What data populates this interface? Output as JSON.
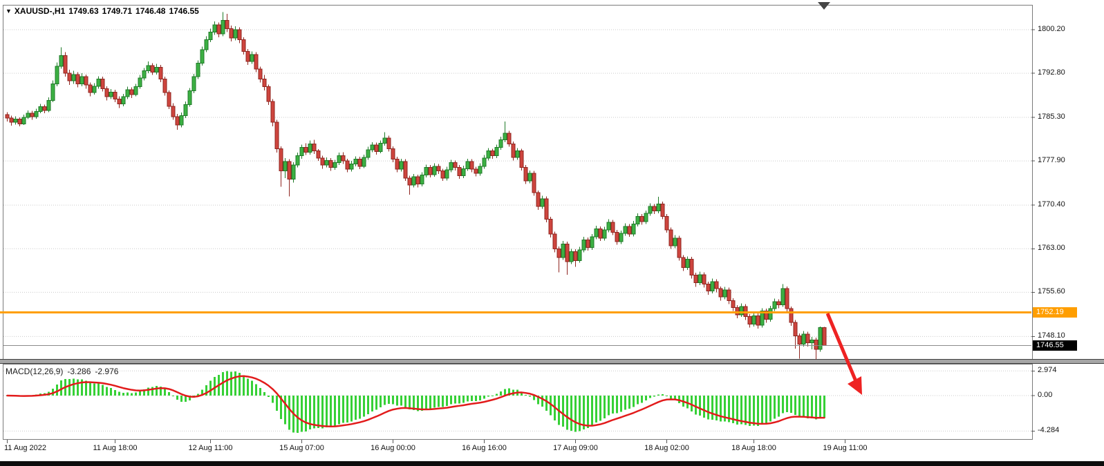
{
  "title_bar": {
    "symbol_tf": "XAUUSD-,H1",
    "open": "1749.63",
    "high": "1749.71",
    "low": "1746.48",
    "close": "1746.55"
  },
  "icons": {
    "title_marker": "▼"
  },
  "macd": {
    "name": "MACD(12,26,9)",
    "main_value": "-3.286",
    "signal_value": "-2.976"
  },
  "levels": {
    "orange_line": {
      "label": "1752.19",
      "value": 1752.19
    },
    "current_price": {
      "label": "1746.55",
      "value": 1746.55
    }
  },
  "colors": {
    "up": "#3CB043",
    "up_border": "#1E7A27",
    "down": "#CE453E",
    "down_border": "#8F241F",
    "macd_hist": "#36D036",
    "macd_signal": "#E21B1B",
    "orange_line": "#FF9E00",
    "grid": "#C9C9C9",
    "axis_text": "#111111",
    "border": "#555555",
    "arrow": "#EE2222",
    "tag_current_bg": "#000000",
    "tag_text": "#FFFFFF",
    "shift_marker": "#454545",
    "current_price_line": "#8A8A8A"
  },
  "chart_data": {
    "type": "candlestick",
    "title": "XAUUSD- H1",
    "symbol": "XAUUSD-",
    "timeframe": "H1",
    "ylim": [
      1744.27,
      1804.3
    ],
    "price_gridlines": [
      1800.2,
      1792.8,
      1785.3,
      1777.9,
      1770.4,
      1763.0,
      1755.6,
      1748.1
    ],
    "horizontal_line": {
      "value": 1752.19
    },
    "current_price": 1746.55,
    "x_labels": [
      {
        "label": "11 Aug 2022",
        "bar": 0
      },
      {
        "label": "11 Aug 18:00",
        "bar": 26
      },
      {
        "label": "12 Aug 11:00",
        "bar": 49
      },
      {
        "label": "15 Aug 07:00",
        "bar": 71
      },
      {
        "label": "16 Aug 00:00",
        "bar": 93
      },
      {
        "label": "16 Aug 16:00",
        "bar": 115
      },
      {
        "label": "17 Aug 09:00",
        "bar": 137
      },
      {
        "label": "18 Aug 02:00",
        "bar": 159
      },
      {
        "label": "18 Aug 18:00",
        "bar": 180
      },
      {
        "label": "19 Aug 11:00",
        "bar": 202
      }
    ],
    "indicator": {
      "type": "MACD",
      "fast": 12,
      "slow": 26,
      "signal": 9,
      "last_main": -3.286,
      "last_signal": -2.976,
      "ylim": [
        -5.25,
        3.75
      ],
      "gridlines": [
        {
          "v": 2.974,
          "label": "2.974"
        },
        {
          "v": 0,
          "label": "0.00"
        },
        {
          "v": -4.284,
          "label": "-4.284"
        }
      ]
    },
    "ohlc": [
      [
        1785.8,
        1786.2,
        1784.6,
        1785.2
      ],
      [
        1785.2,
        1785.6,
        1783.9,
        1784.5
      ],
      [
        1784.5,
        1785.5,
        1784.1,
        1785.0
      ],
      [
        1785.0,
        1785.3,
        1783.8,
        1784.2
      ],
      [
        1784.2,
        1785.8,
        1784.0,
        1785.3
      ],
      [
        1785.3,
        1786.5,
        1785.0,
        1786.0
      ],
      [
        1786.0,
        1786.4,
        1784.9,
        1785.4
      ],
      [
        1785.4,
        1786.8,
        1785.1,
        1786.3
      ],
      [
        1786.3,
        1787.6,
        1786.0,
        1787.1
      ],
      [
        1787.1,
        1787.5,
        1786.0,
        1786.5
      ],
      [
        1786.5,
        1788.7,
        1786.2,
        1788.2
      ],
      [
        1788.2,
        1791.6,
        1787.9,
        1791.0
      ],
      [
        1791.0,
        1794.6,
        1790.6,
        1794.0
      ],
      [
        1794.0,
        1797.2,
        1793.6,
        1795.8
      ],
      [
        1795.8,
        1796.4,
        1792.2,
        1792.8
      ],
      [
        1792.8,
        1793.4,
        1790.8,
        1791.5
      ],
      [
        1791.5,
        1793.2,
        1791.0,
        1792.6
      ],
      [
        1792.6,
        1793.0,
        1790.4,
        1791.0
      ],
      [
        1791.0,
        1792.8,
        1790.6,
        1792.2
      ],
      [
        1792.2,
        1792.6,
        1790.2,
        1790.8
      ],
      [
        1790.8,
        1791.2,
        1788.9,
        1789.5
      ],
      [
        1789.5,
        1791.1,
        1789.2,
        1790.6
      ],
      [
        1790.6,
        1792.3,
        1790.2,
        1791.8
      ],
      [
        1791.8,
        1792.2,
        1789.7,
        1790.2
      ],
      [
        1790.2,
        1790.6,
        1788.2,
        1788.8
      ],
      [
        1788.8,
        1790.1,
        1788.4,
        1789.6
      ],
      [
        1789.6,
        1790.0,
        1787.9,
        1788.4
      ],
      [
        1788.4,
        1788.9,
        1786.9,
        1787.6
      ],
      [
        1787.6,
        1789.3,
        1787.2,
        1788.8
      ],
      [
        1788.8,
        1790.5,
        1788.4,
        1790.0
      ],
      [
        1790.0,
        1790.4,
        1788.6,
        1789.2
      ],
      [
        1789.2,
        1791.0,
        1788.9,
        1790.5
      ],
      [
        1790.5,
        1792.5,
        1790.2,
        1792.0
      ],
      [
        1792.0,
        1793.7,
        1791.6,
        1793.2
      ],
      [
        1793.2,
        1794.8,
        1792.8,
        1794.1
      ],
      [
        1794.1,
        1794.5,
        1792.5,
        1793.0
      ],
      [
        1793.0,
        1794.4,
        1792.6,
        1793.8
      ],
      [
        1793.8,
        1794.2,
        1791.3,
        1791.8
      ],
      [
        1791.8,
        1792.2,
        1789.0,
        1789.5
      ],
      [
        1789.5,
        1789.9,
        1786.7,
        1787.2
      ],
      [
        1787.2,
        1787.7,
        1784.9,
        1785.4
      ],
      [
        1785.4,
        1785.9,
        1783.2,
        1784.0
      ],
      [
        1784.0,
        1786.1,
        1783.6,
        1785.6
      ],
      [
        1785.6,
        1788.0,
        1785.2,
        1787.5
      ],
      [
        1787.5,
        1790.3,
        1787.1,
        1789.8
      ],
      [
        1789.8,
        1792.7,
        1789.4,
        1792.2
      ],
      [
        1792.2,
        1795.0,
        1791.8,
        1794.5
      ],
      [
        1794.5,
        1797.3,
        1794.1,
        1796.8
      ],
      [
        1796.8,
        1799.1,
        1796.4,
        1798.5
      ],
      [
        1798.5,
        1800.4,
        1798.1,
        1799.8
      ],
      [
        1799.8,
        1801.6,
        1799.3,
        1801.0
      ],
      [
        1801.0,
        1801.4,
        1798.9,
        1799.5
      ],
      [
        1799.5,
        1803.2,
        1799.1,
        1801.8
      ],
      [
        1801.8,
        1802.9,
        1799.8,
        1800.4
      ],
      [
        1800.4,
        1800.9,
        1798.2,
        1798.8
      ],
      [
        1798.8,
        1800.8,
        1798.4,
        1800.2
      ],
      [
        1800.2,
        1800.6,
        1797.9,
        1798.5
      ],
      [
        1798.5,
        1798.9,
        1796.0,
        1796.5
      ],
      [
        1796.5,
        1796.9,
        1794.2,
        1794.8
      ],
      [
        1794.8,
        1796.5,
        1794.4,
        1796.0
      ],
      [
        1796.0,
        1796.4,
        1793.0,
        1793.5
      ],
      [
        1793.5,
        1793.9,
        1791.2,
        1791.8
      ],
      [
        1791.8,
        1792.5,
        1789.9,
        1790.5
      ],
      [
        1790.5,
        1790.9,
        1787.4,
        1788.0
      ],
      [
        1788.0,
        1788.4,
        1783.8,
        1784.5
      ],
      [
        1784.5,
        1784.9,
        1779.3,
        1780.0
      ],
      [
        1780.0,
        1780.4,
        1773.5,
        1776.2
      ],
      [
        1776.2,
        1778.4,
        1775.0,
        1777.8
      ],
      [
        1777.8,
        1778.2,
        1771.9,
        1774.8
      ],
      [
        1774.8,
        1777.7,
        1774.2,
        1777.2
      ],
      [
        1777.2,
        1779.3,
        1776.8,
        1778.8
      ],
      [
        1778.8,
        1780.7,
        1778.3,
        1780.2
      ],
      [
        1780.2,
        1780.9,
        1778.9,
        1779.4
      ],
      [
        1779.4,
        1781.4,
        1779.0,
        1780.8
      ],
      [
        1780.8,
        1781.5,
        1779.1,
        1779.6
      ],
      [
        1779.6,
        1779.9,
        1777.9,
        1778.4
      ],
      [
        1778.4,
        1778.8,
        1776.6,
        1777.2
      ],
      [
        1777.2,
        1778.5,
        1776.8,
        1778.0
      ],
      [
        1778.0,
        1778.4,
        1776.2,
        1776.8
      ],
      [
        1776.8,
        1778.1,
        1776.4,
        1777.6
      ],
      [
        1777.6,
        1779.3,
        1777.2,
        1778.8
      ],
      [
        1778.8,
        1779.4,
        1777.4,
        1777.9
      ],
      [
        1777.9,
        1778.3,
        1776.0,
        1776.5
      ],
      [
        1776.5,
        1777.9,
        1776.1,
        1777.4
      ],
      [
        1777.4,
        1778.7,
        1777.0,
        1778.2
      ],
      [
        1778.2,
        1778.6,
        1776.5,
        1777.0
      ],
      [
        1777.0,
        1779.0,
        1776.7,
        1778.5
      ],
      [
        1778.5,
        1780.3,
        1778.1,
        1779.8
      ],
      [
        1779.8,
        1781.1,
        1779.4,
        1780.6
      ],
      [
        1780.6,
        1781.0,
        1779.0,
        1779.5
      ],
      [
        1779.5,
        1781.4,
        1779.2,
        1780.9
      ],
      [
        1780.9,
        1782.8,
        1780.5,
        1781.8
      ],
      [
        1781.8,
        1782.2,
        1779.5,
        1780.0
      ],
      [
        1780.0,
        1780.4,
        1777.7,
        1778.2
      ],
      [
        1778.2,
        1778.6,
        1776.0,
        1776.5
      ],
      [
        1776.5,
        1778.3,
        1776.1,
        1777.8
      ],
      [
        1777.8,
        1778.2,
        1774.5,
        1775.0
      ],
      [
        1775.0,
        1775.4,
        1772.2,
        1773.8
      ],
      [
        1773.8,
        1775.7,
        1773.4,
        1775.2
      ],
      [
        1775.2,
        1775.6,
        1773.4,
        1774.0
      ],
      [
        1774.0,
        1776.0,
        1773.6,
        1775.5
      ],
      [
        1775.5,
        1777.3,
        1775.1,
        1776.8
      ],
      [
        1776.8,
        1777.2,
        1775.1,
        1775.6
      ],
      [
        1775.6,
        1777.5,
        1775.2,
        1777.0
      ],
      [
        1777.0,
        1777.4,
        1775.7,
        1776.2
      ],
      [
        1776.2,
        1776.6,
        1774.5,
        1775.0
      ],
      [
        1775.0,
        1776.9,
        1774.6,
        1776.4
      ],
      [
        1776.4,
        1778.1,
        1776.0,
        1777.6
      ],
      [
        1777.6,
        1778.0,
        1776.3,
        1776.8
      ],
      [
        1776.8,
        1777.2,
        1774.9,
        1775.4
      ],
      [
        1775.4,
        1777.1,
        1775.0,
        1776.6
      ],
      [
        1776.6,
        1778.3,
        1776.2,
        1777.8
      ],
      [
        1777.8,
        1778.2,
        1776.0,
        1776.5
      ],
      [
        1776.5,
        1776.9,
        1775.3,
        1775.8
      ],
      [
        1775.8,
        1777.5,
        1775.4,
        1777.0
      ],
      [
        1777.0,
        1778.9,
        1776.6,
        1778.4
      ],
      [
        1778.4,
        1780.1,
        1778.0,
        1779.6
      ],
      [
        1779.6,
        1780.0,
        1778.3,
        1778.8
      ],
      [
        1778.8,
        1780.7,
        1778.4,
        1780.2
      ],
      [
        1780.2,
        1782.0,
        1779.8,
        1781.5
      ],
      [
        1781.5,
        1784.6,
        1781.1,
        1782.6
      ],
      [
        1782.6,
        1783.0,
        1780.3,
        1780.8
      ],
      [
        1780.8,
        1781.2,
        1778.0,
        1778.5
      ],
      [
        1778.5,
        1780.1,
        1778.1,
        1779.6
      ],
      [
        1779.6,
        1780.0,
        1776.3,
        1776.8
      ],
      [
        1776.8,
        1777.2,
        1774.0,
        1774.5
      ],
      [
        1774.5,
        1776.3,
        1774.1,
        1775.8
      ],
      [
        1775.8,
        1776.2,
        1772.0,
        1772.5
      ],
      [
        1772.5,
        1772.9,
        1769.6,
        1770.2
      ],
      [
        1770.2,
        1772.0,
        1769.8,
        1771.5
      ],
      [
        1771.5,
        1771.9,
        1767.5,
        1768.0
      ],
      [
        1768.0,
        1768.4,
        1764.9,
        1765.5
      ],
      [
        1765.5,
        1765.9,
        1762.4,
        1763.0
      ],
      [
        1763.0,
        1763.4,
        1759.0,
        1761.5
      ],
      [
        1761.5,
        1764.3,
        1761.1,
        1763.8
      ],
      [
        1763.8,
        1764.2,
        1758.6,
        1760.8
      ],
      [
        1760.8,
        1763.0,
        1760.4,
        1762.5
      ],
      [
        1762.5,
        1762.9,
        1759.9,
        1761.0
      ],
      [
        1761.0,
        1763.3,
        1760.6,
        1762.8
      ],
      [
        1762.8,
        1765.0,
        1762.4,
        1764.5
      ],
      [
        1764.5,
        1764.9,
        1762.7,
        1763.2
      ],
      [
        1763.2,
        1765.5,
        1762.8,
        1765.0
      ],
      [
        1765.0,
        1766.9,
        1764.6,
        1766.4
      ],
      [
        1766.4,
        1766.8,
        1764.3,
        1764.8
      ],
      [
        1764.8,
        1766.7,
        1764.4,
        1766.2
      ],
      [
        1766.2,
        1768.0,
        1765.8,
        1767.5
      ],
      [
        1767.5,
        1767.9,
        1765.3,
        1765.8
      ],
      [
        1765.8,
        1766.2,
        1763.7,
        1764.2
      ],
      [
        1764.2,
        1766.1,
        1763.8,
        1765.6
      ],
      [
        1765.6,
        1767.3,
        1765.2,
        1766.8
      ],
      [
        1766.8,
        1767.2,
        1765.0,
        1765.5
      ],
      [
        1765.5,
        1767.7,
        1765.1,
        1767.2
      ],
      [
        1767.2,
        1769.0,
        1766.8,
        1768.5
      ],
      [
        1768.5,
        1768.9,
        1767.1,
        1767.6
      ],
      [
        1767.6,
        1769.5,
        1767.2,
        1769.0
      ],
      [
        1769.0,
        1770.7,
        1768.6,
        1770.2
      ],
      [
        1770.2,
        1770.6,
        1768.9,
        1769.4
      ],
      [
        1769.4,
        1771.8,
        1769.0,
        1770.6
      ],
      [
        1770.6,
        1771.0,
        1768.0,
        1768.5
      ],
      [
        1768.5,
        1768.9,
        1765.7,
        1766.2
      ],
      [
        1766.2,
        1766.6,
        1763.0,
        1763.5
      ],
      [
        1763.5,
        1765.3,
        1763.1,
        1764.8
      ],
      [
        1764.8,
        1765.2,
        1761.0,
        1761.5
      ],
      [
        1761.5,
        1761.9,
        1759.2,
        1759.8
      ],
      [
        1759.8,
        1761.7,
        1759.4,
        1761.2
      ],
      [
        1761.2,
        1761.6,
        1757.9,
        1758.5
      ],
      [
        1758.5,
        1758.9,
        1756.5,
        1757.2
      ],
      [
        1757.2,
        1759.1,
        1756.8,
        1758.6
      ],
      [
        1758.6,
        1759.0,
        1756.4,
        1757.0
      ],
      [
        1757.0,
        1757.4,
        1755.2,
        1755.8
      ],
      [
        1755.8,
        1757.9,
        1755.4,
        1757.4
      ],
      [
        1757.4,
        1757.8,
        1755.6,
        1756.2
      ],
      [
        1756.2,
        1756.6,
        1754.2,
        1754.8
      ],
      [
        1754.8,
        1756.5,
        1754.4,
        1756.0
      ],
      [
        1756.0,
        1756.4,
        1753.6,
        1754.2
      ],
      [
        1754.2,
        1754.6,
        1752.4,
        1753.0
      ],
      [
        1753.0,
        1753.4,
        1751.2,
        1751.8
      ],
      [
        1751.8,
        1753.7,
        1751.4,
        1753.2
      ],
      [
        1753.2,
        1753.6,
        1750.9,
        1751.5
      ],
      [
        1751.5,
        1751.9,
        1749.6,
        1750.2
      ],
      [
        1750.2,
        1752.1,
        1749.8,
        1751.6
      ],
      [
        1751.6,
        1752.0,
        1749.4,
        1750.0
      ],
      [
        1750.0,
        1752.9,
        1749.6,
        1752.4
      ],
      [
        1752.4,
        1752.8,
        1750.4,
        1751.0
      ],
      [
        1751.0,
        1753.3,
        1750.6,
        1752.8
      ],
      [
        1752.8,
        1754.5,
        1752.4,
        1754.0
      ],
      [
        1754.0,
        1754.4,
        1752.9,
        1753.5
      ],
      [
        1753.5,
        1757.0,
        1753.1,
        1756.2
      ],
      [
        1756.2,
        1756.6,
        1752.3,
        1752.8
      ],
      [
        1752.8,
        1753.2,
        1749.9,
        1750.5
      ],
      [
        1750.5,
        1750.9,
        1746.0,
        1748.2
      ],
      [
        1748.2,
        1748.6,
        1744.3,
        1746.8
      ],
      [
        1746.8,
        1749.0,
        1746.4,
        1748.5
      ],
      [
        1748.5,
        1748.9,
        1746.4,
        1747.0
      ],
      [
        1747.0,
        1748.0,
        1745.9,
        1747.5
      ],
      [
        1747.5,
        1747.9,
        1744.2,
        1745.9
      ],
      [
        1745.9,
        1749.8,
        1745.5,
        1749.6
      ],
      [
        1749.63,
        1749.71,
        1746.48,
        1746.55
      ]
    ]
  }
}
